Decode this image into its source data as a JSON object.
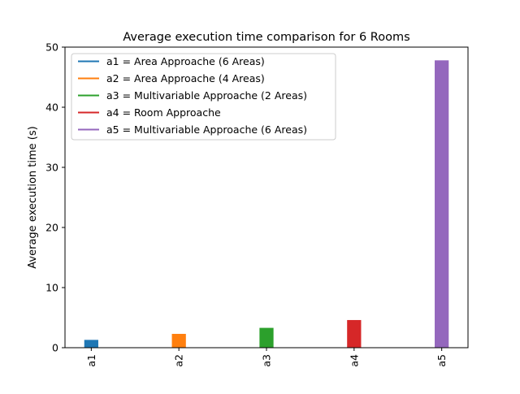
{
  "chart_data": {
    "type": "bar",
    "title": "Average execution time comparison for 6 Rooms",
    "xlabel": "",
    "ylabel": "Average execution time (s)",
    "ylim": [
      0,
      50
    ],
    "yticks": [
      0,
      10,
      20,
      30,
      40,
      50
    ],
    "grid": false,
    "legend_position": "top-left",
    "categories": [
      "a1",
      "a2",
      "a3",
      "a4",
      "a5"
    ],
    "values": [
      1.3,
      2.3,
      3.3,
      4.6,
      47.8
    ],
    "colors": [
      "#1f77b4",
      "#ff7f0e",
      "#2ca02c",
      "#d62728",
      "#9467bd"
    ],
    "legend": [
      {
        "label": "a1 = Area Approache (6 Areas)",
        "color": "#1f77b4"
      },
      {
        "label": "a2 = Area Approache (4 Areas)",
        "color": "#ff7f0e"
      },
      {
        "label": "a3 = Multivariable Approache (2 Areas)",
        "color": "#2ca02c"
      },
      {
        "label": "a4 = Room Approache",
        "color": "#d62728"
      },
      {
        "label": "a5 = Multivariable Approache (6 Areas)",
        "color": "#9467bd"
      }
    ]
  }
}
